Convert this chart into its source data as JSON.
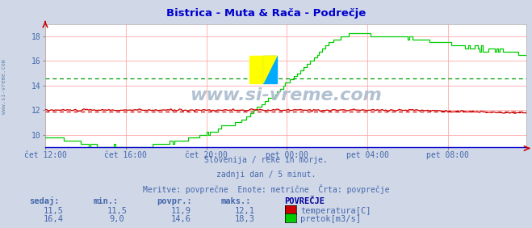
{
  "title": "Bistrica - Muta & Rača - Podrečje",
  "title_color": "#0000cc",
  "bg_color": "#d0d8e8",
  "plot_bg_color": "#ffffff",
  "watermark": "www.si-vreme.com",
  "subtitle_lines": [
    "Slovenija / reke in morje.",
    "zadnji dan / 5 minut.",
    "Meritve: povprečne  Enote: metrične  Črta: povprečje"
  ],
  "tick_color": "#4466aa",
  "xtick_labels": [
    "čet 12:00",
    "čet 16:00",
    "čet 20:00",
    "pet 00:00",
    "pet 04:00",
    "pet 08:00"
  ],
  "ylim": [
    9,
    19
  ],
  "yticks": [
    10,
    12,
    14,
    16,
    18
  ],
  "grid_color": "#ffaaaa",
  "temp_color": "#cc0000",
  "flow_color": "#00cc00",
  "avg_temp_color": "#cc0000",
  "avg_flow_color": "#009900",
  "temp_avg": 11.9,
  "flow_avg": 14.6,
  "logo_yellow": "#ffff00",
  "logo_blue": "#00aaff",
  "legend_color": "#4466aa",
  "table_header_color": "#000099",
  "n_points": 288,
  "left_text_color": "#6688aa"
}
